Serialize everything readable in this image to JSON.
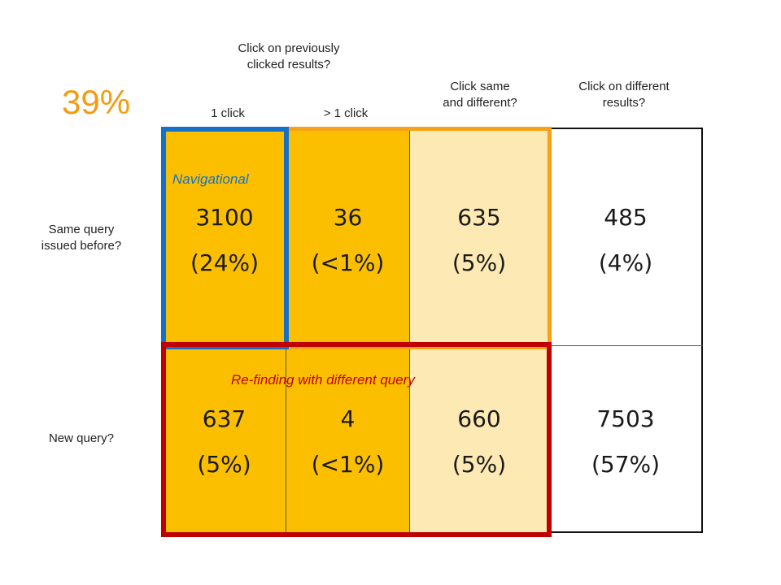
{
  "headline_percent": "39%",
  "headers": {
    "group_label": "Click on previously clicked results?",
    "group_label_line1": "Click on previously",
    "group_label_line2": "clicked results?",
    "col1": "1 click",
    "col2": "> 1 click",
    "col3_line1": "Click same",
    "col3_line2": "and different?",
    "col4_line1": "Click on different",
    "col4_line2": "results?"
  },
  "rows": [
    {
      "label_line1": "Same query",
      "label_line2": "issued before?",
      "cells": [
        {
          "count": "3100",
          "pct": "(24%)"
        },
        {
          "count": "36",
          "pct": "(<1%)"
        },
        {
          "count": "635",
          "pct": "(5%)"
        },
        {
          "count": "485",
          "pct": "(4%)"
        }
      ]
    },
    {
      "label_line1": "New query?",
      "cells": [
        {
          "count": "637",
          "pct": "(5%)"
        },
        {
          "count": "4",
          "pct": "(<1%)"
        },
        {
          "count": "660",
          "pct": "(5%)"
        },
        {
          "count": "7503",
          "pct": "(57%)"
        }
      ]
    }
  ],
  "annotations": {
    "navigational": "Navigational",
    "refinding": "Re-finding with different query"
  },
  "colors": {
    "orange_cell": "#fbbf00",
    "light_cell": "#fde9b3",
    "blue_box": "#1570c8",
    "orange_box": "#f7a116",
    "red_box": "#c00000",
    "percent_text": "#f39c12"
  }
}
